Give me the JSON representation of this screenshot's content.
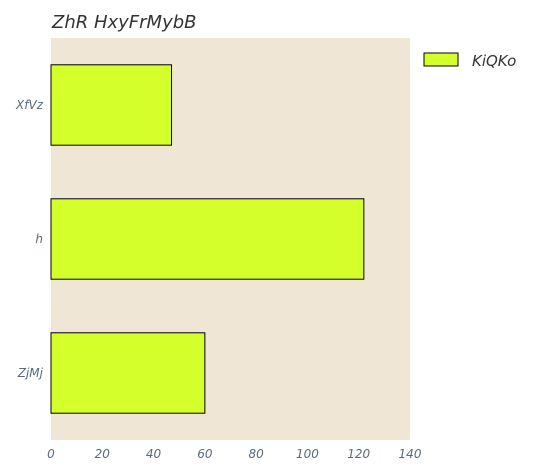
{
  "chart_data": {
    "type": "bar",
    "orientation": "horizontal",
    "title": "ZhR HxyFrMybB",
    "xlabel": "",
    "ylabel": "",
    "categories": [
      "XfVz",
      "h",
      "ZjMj"
    ],
    "series": [
      {
        "name": "KiQKo",
        "values": [
          47,
          122,
          60
        ],
        "color": "#d4ff2a"
      }
    ],
    "xlim": [
      0,
      140
    ],
    "xticks": [
      0,
      20,
      40,
      60,
      80,
      100,
      120,
      140
    ],
    "grid": false,
    "legend": "top-right outside",
    "colors": {
      "plot_background": "#efe6d6",
      "bar_edge": "#000000",
      "text": "#5a6a7a"
    }
  }
}
